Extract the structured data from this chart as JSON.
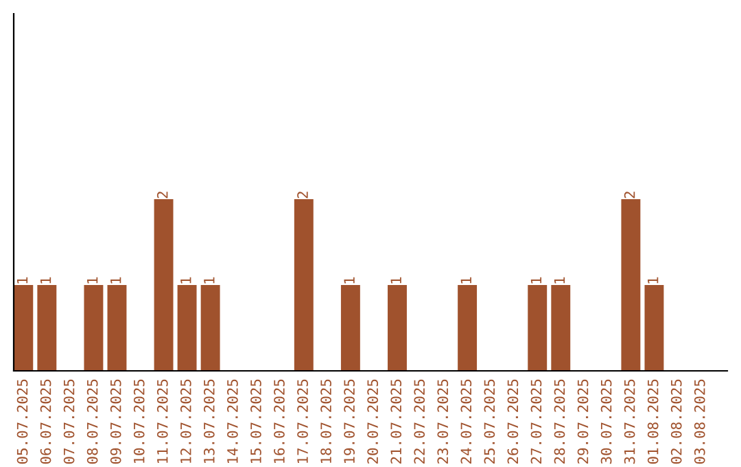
{
  "chart_data": {
    "type": "bar",
    "categories": [
      "05.07.2025",
      "06.07.2025",
      "07.07.2025",
      "08.07.2025",
      "09.07.2025",
      "10.07.2025",
      "11.07.2025",
      "12.07.2025",
      "13.07.2025",
      "14.07.2025",
      "15.07.2025",
      "16.07.2025",
      "17.07.2025",
      "18.07.2025",
      "19.07.2025",
      "20.07.2025",
      "21.07.2025",
      "22.07.2025",
      "23.07.2025",
      "24.07.2025",
      "25.07.2025",
      "26.07.2025",
      "27.07.2025",
      "28.07.2025",
      "29.07.2025",
      "30.07.2025",
      "31.07.2025",
      "01.08.2025",
      "02.08.2025",
      "03.08.2025"
    ],
    "values": [
      1,
      1,
      0,
      1,
      1,
      0,
      2,
      1,
      1,
      0,
      0,
      0,
      2,
      0,
      1,
      0,
      1,
      0,
      0,
      1,
      0,
      0,
      1,
      1,
      0,
      0,
      2,
      1,
      0,
      0
    ],
    "value_labels": [
      "1",
      "1",
      null,
      "1",
      "1",
      null,
      "2",
      "1",
      "1",
      null,
      null,
      null,
      "2",
      null,
      "1",
      null,
      "1",
      null,
      null,
      "1",
      null,
      null,
      "1",
      "1",
      null,
      null,
      "2",
      "1",
      null,
      null
    ],
    "color": "#a0522d",
    "grid": false,
    "legend": false
  }
}
